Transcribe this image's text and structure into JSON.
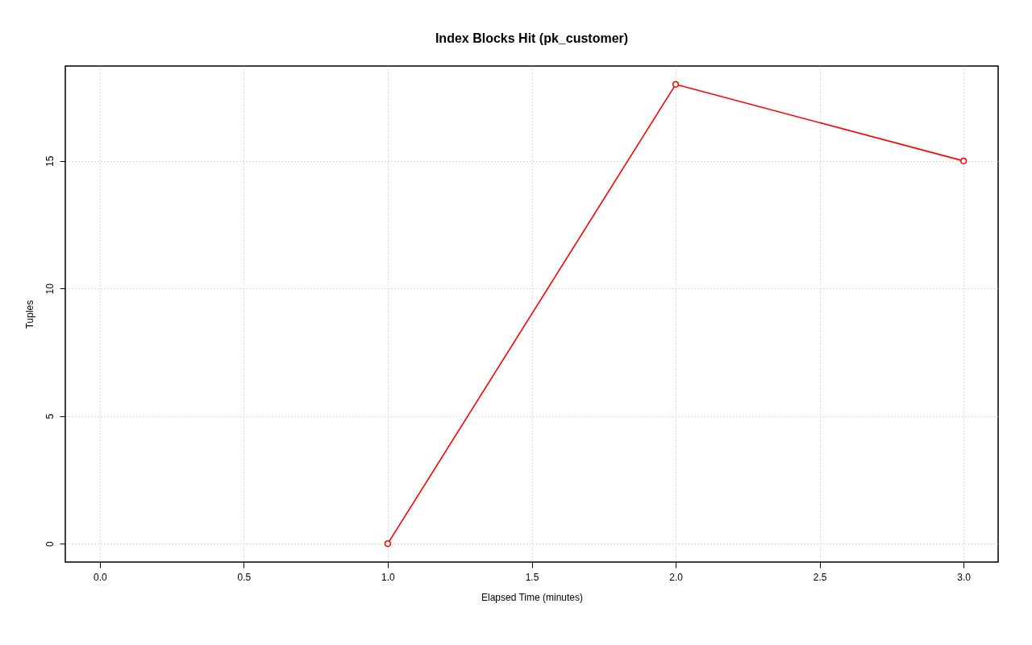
{
  "chart_data": {
    "type": "line",
    "title": "Index Blocks Hit (pk_customer)",
    "xlabel": "Elapsed Time (minutes)",
    "ylabel": "Tuples",
    "x": [
      1,
      2,
      3
    ],
    "series": [
      {
        "color": "#ff0000",
        "values": [
          0,
          18,
          15
        ]
      }
    ],
    "xlim": [
      -0.12,
      3.12
    ],
    "ylim": [
      -0.72,
      18.72
    ],
    "xticks": [
      {
        "value": 0,
        "label": "0.0"
      },
      0.5,
      {
        "value": 1,
        "label": "1.0"
      },
      1.5,
      {
        "value": 2,
        "label": "2.0"
      },
      2.5,
      {
        "value": 3,
        "label": "3.0"
      }
    ],
    "yticks": [
      0,
      5,
      10,
      15
    ],
    "grid": true,
    "marker": "circle",
    "line_style": "solid"
  }
}
